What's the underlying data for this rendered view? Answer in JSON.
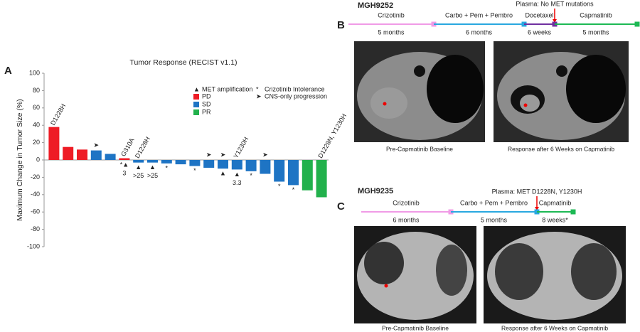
{
  "chart_data": {
    "type": "waterfall",
    "panel_label": "A",
    "title": "Tumor Response (RECIST v1.1)",
    "y_label": "Maximum Change in Tumor Size (%)",
    "categories": [
      null,
      null,
      null,
      null,
      null,
      null,
      null,
      null,
      null,
      null,
      null,
      null,
      null,
      null,
      null,
      null,
      null,
      null,
      null,
      null
    ],
    "values": [
      38,
      15,
      12,
      11,
      7,
      2,
      -3,
      -3,
      -4,
      -5,
      -7,
      -9,
      -10,
      -11,
      -13,
      -16,
      -25,
      -29,
      -35,
      -43
    ],
    "bar_colors": [
      "#ee1c25",
      "#ee1c25",
      "#ee1c25",
      "#1e74c4",
      "#1e74c4",
      "#ee1c25",
      "#1e74c4",
      "#1e74c4",
      "#1e74c4",
      "#1e74c4",
      "#1e74c4",
      "#1e74c4",
      "#1e74c4",
      "#1e74c4",
      "#1e74c4",
      "#1e74c4",
      "#1e74c4",
      "#1e74c4",
      "#22b14c",
      "#22b14c"
    ],
    "mutation_labels": [
      "D1228H",
      null,
      null,
      null,
      null,
      "G310A",
      "D1228H",
      null,
      null,
      null,
      null,
      null,
      null,
      "Y1230H",
      null,
      null,
      null,
      null,
      null,
      "D1228N, Y1230H"
    ],
    "above_symbols": [
      null,
      null,
      null,
      "➤",
      null,
      null,
      null,
      null,
      null,
      null,
      null,
      "➤",
      "➤",
      null,
      null,
      "➤",
      null,
      null,
      null,
      null
    ],
    "below_symbols": [
      null,
      null,
      null,
      null,
      null,
      "*▲",
      "▲",
      "▲",
      "*",
      null,
      "*",
      null,
      "▲",
      "▲",
      "*",
      null,
      "*",
      "*",
      null,
      null
    ],
    "below_labels": [
      null,
      null,
      null,
      null,
      null,
      "3",
      ">25",
      ">25",
      null,
      null,
      null,
      null,
      null,
      "3.3",
      null,
      null,
      null,
      null,
      null,
      null
    ],
    "ylim": [
      -100,
      100
    ],
    "yticks": [
      -100,
      -80,
      -60,
      -40,
      -20,
      0,
      20,
      40,
      60,
      80,
      100
    ],
    "legend": [
      {
        "symbol": "▲",
        "name": "MET amplification"
      },
      {
        "symbol": "*",
        "name": "Crizotinib Intolerance"
      },
      {
        "symbol": "➤",
        "name": "CNS-only progression"
      },
      {
        "name": "PD",
        "color": "#ee1c25"
      },
      {
        "name": "SD",
        "color": "#1e74c4"
      },
      {
        "name": "PR",
        "color": "#22b14c"
      }
    ]
  },
  "panel_b": {
    "label": "B",
    "patient": "MGH9252",
    "note": "Plasma: No MET mutations",
    "segments": [
      {
        "drug": "Crizotinib",
        "duration": "5 months",
        "color": "#f09be6"
      },
      {
        "drug": "Carbo + Pem + Pembro",
        "duration": "6 months",
        "color": "#29a8e0"
      },
      {
        "drug": "Docetaxel",
        "duration": "6 weeks",
        "color": "#7030a0"
      },
      {
        "drug": "Capmatinib",
        "duration": "5 months",
        "color": "#1db954"
      }
    ],
    "captions": [
      "Pre-Capmatinib Baseline",
      "Response after 6 Weeks on Capmatinib"
    ]
  },
  "panel_c": {
    "label": "C",
    "patient": "MGH9235",
    "note": "Plasma: MET D1228N, Y1230H",
    "segments": [
      {
        "drug": "Crizotinib",
        "duration": "6 months",
        "color": "#f09be6"
      },
      {
        "drug": "Carbo + Pem + Pembro",
        "duration": "5 months",
        "color": "#29a8e0"
      },
      {
        "drug": "Capmatinib",
        "duration": "8 weeks*",
        "color": "#1db954"
      }
    ],
    "captions": [
      "Pre-Capmatinib Baseline",
      "Response after 6 Weeks on Capmatinib"
    ]
  }
}
